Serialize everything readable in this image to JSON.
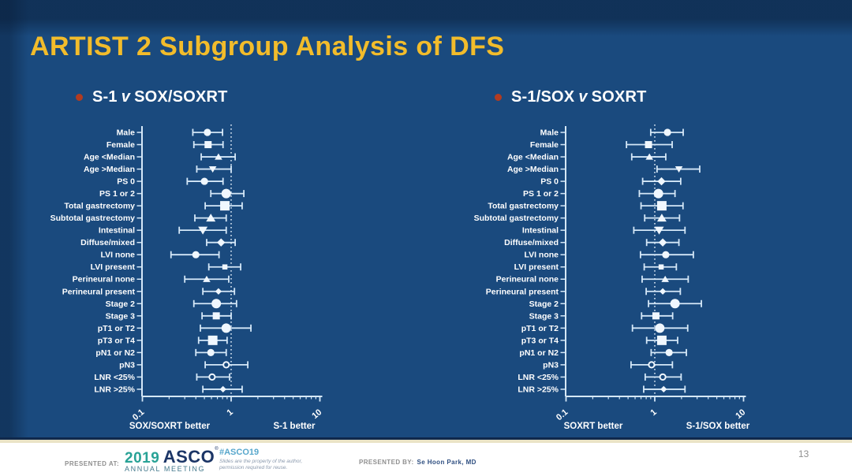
{
  "slide": {
    "title": "ARTIST 2 Subgroup Analysis of DFS",
    "page_number": "13"
  },
  "colors": {
    "background": "#1A4A7E",
    "title_gold": "#F2BC2B",
    "bullet_red": "#B23B20",
    "plot_line": "#D5E8F8",
    "marker_fill": "#F0F7FE",
    "text_white": "#FFFFFF"
  },
  "footer": {
    "presented_at_label": "PRESENTED AT:",
    "logo_year": "2019",
    "logo_org": "ASCO",
    "logo_reg": "®",
    "logo_sub": "ANNUAL MEETING",
    "hashtag": "#ASCO19",
    "disclaimer_line1": "Slides are the property of the author,",
    "disclaimer_line2": "permission required for reuse.",
    "presented_by_label": "PRESENTED BY:",
    "presenter": "Se Hoon Park, MD"
  },
  "chart_data": [
    {
      "type": "scatter",
      "subtype": "forest-plot",
      "heading_parts": [
        "S-1",
        "v",
        "SOX/SOXRT"
      ],
      "x_scale": "log",
      "x_range": [
        0.1,
        10
      ],
      "x_ticks": [
        "0.1",
        "1",
        "10"
      ],
      "x_tick_values": [
        0.1,
        1,
        10
      ],
      "reference_line": 1,
      "xlabel_left": "SOX/SOXRT better",
      "xlabel_right": "S-1 better",
      "grid": false,
      "rows": [
        {
          "label": "Male",
          "hr": 0.54,
          "lo": 0.37,
          "hi": 0.8,
          "marker": "circle",
          "size": "m"
        },
        {
          "label": "Female",
          "hr": 0.55,
          "lo": 0.38,
          "hi": 0.81,
          "marker": "square",
          "size": "m"
        },
        {
          "label": "Age <Median",
          "hr": 0.72,
          "lo": 0.46,
          "hi": 1.11,
          "marker": "triangle-up",
          "size": "s"
        },
        {
          "label": "Age >Median",
          "hr": 0.62,
          "lo": 0.41,
          "hi": 1.0,
          "marker": "triangle-down",
          "size": "s"
        },
        {
          "label": "PS 0",
          "hr": 0.5,
          "lo": 0.32,
          "hi": 0.81,
          "marker": "circle",
          "size": "m"
        },
        {
          "label": "PS 1 or 2",
          "hr": 0.88,
          "lo": 0.59,
          "hi": 1.39,
          "marker": "circle",
          "size": "l"
        },
        {
          "label": "Total gastrectomy",
          "hr": 0.85,
          "lo": 0.51,
          "hi": 1.33,
          "marker": "square",
          "size": "l"
        },
        {
          "label": "Subtotal gastrectomy",
          "hr": 0.59,
          "lo": 0.39,
          "hi": 0.88,
          "marker": "triangle-up",
          "size": "m"
        },
        {
          "label": "Intestinal",
          "hr": 0.48,
          "lo": 0.26,
          "hi": 0.88,
          "marker": "triangle-down",
          "size": "m"
        },
        {
          "label": "Diffuse/mixed",
          "hr": 0.77,
          "lo": 0.53,
          "hi": 1.11,
          "marker": "diamond",
          "size": "m"
        },
        {
          "label": "LVI none",
          "hr": 0.4,
          "lo": 0.21,
          "hi": 0.73,
          "marker": "circle",
          "size": "m"
        },
        {
          "label": "LVI present",
          "hr": 0.85,
          "lo": 0.56,
          "hi": 1.28,
          "marker": "square",
          "size": "s"
        },
        {
          "label": "Perineural none",
          "hr": 0.53,
          "lo": 0.3,
          "hi": 0.94,
          "marker": "triangle-up",
          "size": "s"
        },
        {
          "label": "Perineural present",
          "hr": 0.72,
          "lo": 0.48,
          "hi": 1.09,
          "marker": "diamond",
          "size": "s"
        },
        {
          "label": "Stage 2",
          "hr": 0.68,
          "lo": 0.38,
          "hi": 1.15,
          "marker": "circle",
          "size": "l"
        },
        {
          "label": "Stage 3",
          "hr": 0.68,
          "lo": 0.47,
          "hi": 1.0,
          "marker": "square",
          "size": "m"
        },
        {
          "label": "pT1 or T2",
          "hr": 0.88,
          "lo": 0.45,
          "hi": 1.67,
          "marker": "circle",
          "size": "l"
        },
        {
          "label": "pT3 or T4",
          "hr": 0.62,
          "lo": 0.43,
          "hi": 0.9,
          "marker": "square",
          "size": "l"
        },
        {
          "label": "pN1 or N2",
          "hr": 0.59,
          "lo": 0.4,
          "hi": 0.88,
          "marker": "circle",
          "size": "m"
        },
        {
          "label": "pN3",
          "hr": 0.88,
          "lo": 0.51,
          "hi": 1.54,
          "marker": "circle-open",
          "size": "s"
        },
        {
          "label": "LNR <25%",
          "hr": 0.61,
          "lo": 0.41,
          "hi": 0.96,
          "marker": "circle-open",
          "size": "s"
        },
        {
          "label": "LNR >25%",
          "hr": 0.81,
          "lo": 0.48,
          "hi": 1.33,
          "marker": "diamond",
          "size": "s"
        }
      ]
    },
    {
      "type": "scatter",
      "subtype": "forest-plot",
      "heading_parts": [
        "S-1/SOX",
        "v",
        "SOXRT"
      ],
      "x_scale": "log",
      "x_range": [
        0.1,
        10
      ],
      "x_ticks": [
        "0.1",
        "1",
        "10"
      ],
      "x_tick_values": [
        0.1,
        1,
        10
      ],
      "reference_line": 1,
      "xlabel_left": "SOXRT better",
      "xlabel_right": "S-1/SOX better",
      "grid": false,
      "rows": [
        {
          "label": "Male",
          "hr": 1.39,
          "lo": 0.9,
          "hi": 2.09,
          "marker": "circle",
          "size": "m"
        },
        {
          "label": "Female",
          "hr": 0.85,
          "lo": 0.48,
          "hi": 1.57,
          "marker": "square",
          "size": "m"
        },
        {
          "label": "Age <Median",
          "hr": 0.87,
          "lo": 0.55,
          "hi": 1.33,
          "marker": "triangle-up",
          "size": "s"
        },
        {
          "label": "Age >Median",
          "hr": 1.87,
          "lo": 1.06,
          "hi": 3.21,
          "marker": "triangle-down",
          "size": "s"
        },
        {
          "label": "PS 0",
          "hr": 1.19,
          "lo": 0.73,
          "hi": 1.96,
          "marker": "diamond",
          "size": "m"
        },
        {
          "label": "PS 1 or 2",
          "hr": 1.1,
          "lo": 0.67,
          "hi": 1.69,
          "marker": "circle",
          "size": "l"
        },
        {
          "label": "Total gastrectomy",
          "hr": 1.2,
          "lo": 0.7,
          "hi": 2.08,
          "marker": "square",
          "size": "l"
        },
        {
          "label": "Subtotal gastrectomy",
          "hr": 1.2,
          "lo": 0.77,
          "hi": 1.9,
          "marker": "triangle-up",
          "size": "m"
        },
        {
          "label": "Intestinal",
          "hr": 1.12,
          "lo": 0.58,
          "hi": 2.19,
          "marker": "triangle-down",
          "size": "m"
        },
        {
          "label": "Diffuse/mixed",
          "hr": 1.23,
          "lo": 0.81,
          "hi": 1.87,
          "marker": "diamond",
          "size": "m"
        },
        {
          "label": "LVI none",
          "hr": 1.33,
          "lo": 0.69,
          "hi": 2.72,
          "marker": "circle",
          "size": "m"
        },
        {
          "label": "LVI present",
          "hr": 1.18,
          "lo": 0.76,
          "hi": 1.75,
          "marker": "square",
          "size": "s"
        },
        {
          "label": "Perineural none",
          "hr": 1.31,
          "lo": 0.72,
          "hi": 2.38,
          "marker": "triangle-up",
          "size": "s"
        },
        {
          "label": "Perineural present",
          "hr": 1.23,
          "lo": 0.8,
          "hi": 1.94,
          "marker": "diamond",
          "size": "s"
        },
        {
          "label": "Stage 2",
          "hr": 1.69,
          "lo": 0.85,
          "hi": 3.35,
          "marker": "circle",
          "size": "l"
        },
        {
          "label": "Stage 3",
          "hr": 1.03,
          "lo": 0.71,
          "hi": 1.59,
          "marker": "square",
          "size": "m"
        },
        {
          "label": "pT1 or T2",
          "hr": 1.14,
          "lo": 0.56,
          "hi": 2.35,
          "marker": "circle",
          "size": "l"
        },
        {
          "label": "pT3 or T4",
          "hr": 1.2,
          "lo": 0.81,
          "hi": 1.81,
          "marker": "square",
          "size": "l"
        },
        {
          "label": "pN1 or N2",
          "hr": 1.45,
          "lo": 0.91,
          "hi": 2.27,
          "marker": "circle",
          "size": "m"
        },
        {
          "label": "pN3",
          "hr": 0.92,
          "lo": 0.54,
          "hi": 1.58,
          "marker": "circle-open",
          "size": "s"
        },
        {
          "label": "LNR <25%",
          "hr": 1.23,
          "lo": 0.78,
          "hi": 1.98,
          "marker": "circle-open",
          "size": "s"
        },
        {
          "label": "LNR >25%",
          "hr": 1.26,
          "lo": 0.75,
          "hi": 2.19,
          "marker": "diamond",
          "size": "s"
        }
      ]
    }
  ]
}
